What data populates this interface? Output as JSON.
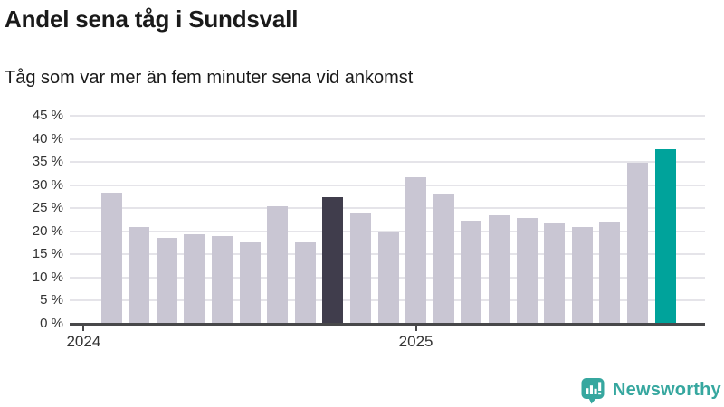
{
  "header": {
    "title": "Andel sena tåg i Sundsvall",
    "subtitle": "Tåg som var mer än fem minuter sena vid ankomst"
  },
  "chart_data": {
    "type": "bar",
    "title": "Andel sena tåg i Sundsvall",
    "subtitle": "Tåg som var mer än fem minuter sena vid ankomst",
    "unit": "%",
    "values": [
      28.3,
      21.0,
      18.6,
      19.4,
      18.9,
      17.7,
      25.4,
      17.7,
      27.4,
      23.8,
      19.9,
      31.6,
      28.1,
      22.3,
      23.4,
      22.9,
      21.8,
      21.0,
      22.2,
      34.8,
      37.8
    ],
    "highlight": {
      "dark_bar_index": 8,
      "accent_bar_index": 20
    },
    "ylim": [
      0,
      45
    ],
    "y_tick_step": 5,
    "y_tick_labels": [
      "0 %",
      "5 %",
      "10 %",
      "15 %",
      "20 %",
      "25 %",
      "30 %",
      "35 %",
      "40 %",
      "45 %"
    ],
    "x_ticks": [
      {
        "label": "2024",
        "month_offset": 0
      },
      {
        "label": "2025",
        "month_offset": 12
      }
    ],
    "bar_start_month_offset": 1,
    "grid": "horizontal",
    "legend": "none",
    "colors": {
      "bar": "#c9c6d3",
      "dark": "#403d4c",
      "accent": "#00a39b",
      "gridline": "#e5e4e9",
      "axis": "#48484a"
    }
  },
  "footer": {
    "brand": "Newsworthy",
    "logo_icon": "newsworthy-speech-bubble-bar-chart-icon",
    "brand_color": "#36a79f"
  }
}
